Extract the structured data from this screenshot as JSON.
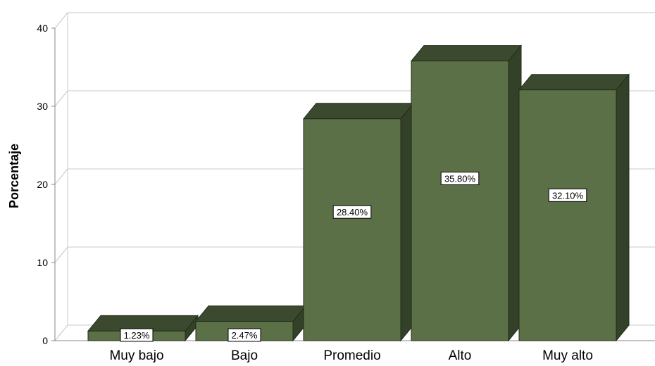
{
  "chart_data": {
    "type": "bar",
    "title": "",
    "xlabel": "",
    "ylabel": "Porcentaje",
    "ylim": [
      0,
      40
    ],
    "yticks": [
      0,
      10,
      20,
      30,
      40
    ],
    "grid": true,
    "three_d": true,
    "categories": [
      "Muy bajo",
      "Bajo",
      "Promedio",
      "Alto",
      "Muy alto"
    ],
    "values": [
      1.23,
      2.47,
      28.4,
      35.8,
      32.1
    ],
    "data_labels": [
      "1.23%",
      "2.47%",
      "28.40%",
      "35.80%",
      "32.10%"
    ],
    "colors": {
      "bar_front": "#5c7047",
      "bar_top": "#3b4a2e",
      "bar_side": "#334128",
      "bar_edge": "#222b1a",
      "grid": "#c8c8c8",
      "axis": "#888888",
      "text": "#000000",
      "label_bg": "#ffffff"
    }
  }
}
